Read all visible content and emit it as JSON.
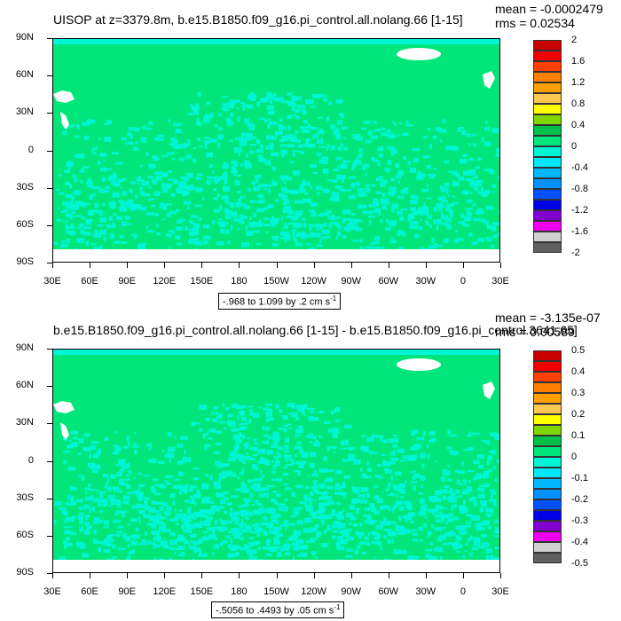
{
  "panels": [
    {
      "title": "UISOP at z=3379.8m, b.e15.B1850.f09_g16.pi_control.all.nolang.66 [1-15]",
      "mean": "mean = -0.0002479",
      "rms": "rms = 0.02534",
      "range": "-.968 to 1.099 by .2 cm s",
      "range_sup": "-1",
      "colorbar_labels": [
        "2",
        "1.6",
        "1.2",
        "0.8",
        "0.4",
        "0",
        "-0.4",
        "-0.8",
        "-1.2",
        "-1.6",
        "-2"
      ]
    },
    {
      "title": "b.e15.B1850.f09_g16.pi_control.all.nolang.66 [1-15] - b.e15.B1850.f09_g16.pi_control.3641.65]",
      "mean": "mean = -3.135e-07",
      "rms": "rms = 0.00589",
      "range": "-.5056 to .4493 by .05 cm s",
      "range_sup": "-1",
      "colorbar_labels": [
        "0.5",
        "0.4",
        "0.3",
        "0.2",
        "0.1",
        "0",
        "-0.1",
        "-0.2",
        "-0.3",
        "-0.4",
        "-0.5"
      ]
    }
  ],
  "axes": {
    "lat_labels": [
      "90N",
      "60N",
      "30N",
      "0",
      "30S",
      "60S",
      "90S"
    ],
    "lon_labels": [
      "30E",
      "60E",
      "90E",
      "120E",
      "150E",
      "180",
      "150W",
      "120W",
      "90W",
      "60W",
      "30W",
      "0",
      "30E"
    ]
  },
  "colors": {
    "field_green": "#00e67a",
    "field_cyan": "#00f5d6",
    "land_white": "#ffffff",
    "colorbar": [
      "#c80000",
      "#f00000",
      "#ff4000",
      "#ff8000",
      "#ffa000",
      "#ffc850",
      "#ffff00",
      "#7fd600",
      "#00c04a",
      "#00e67a",
      "#00f5d6",
      "#00e8ff",
      "#00b8ff",
      "#0090ff",
      "#0050ff",
      "#0000e6",
      "#8000d0",
      "#ee00ee",
      "#d0d0d0",
      "#606060"
    ]
  }
}
